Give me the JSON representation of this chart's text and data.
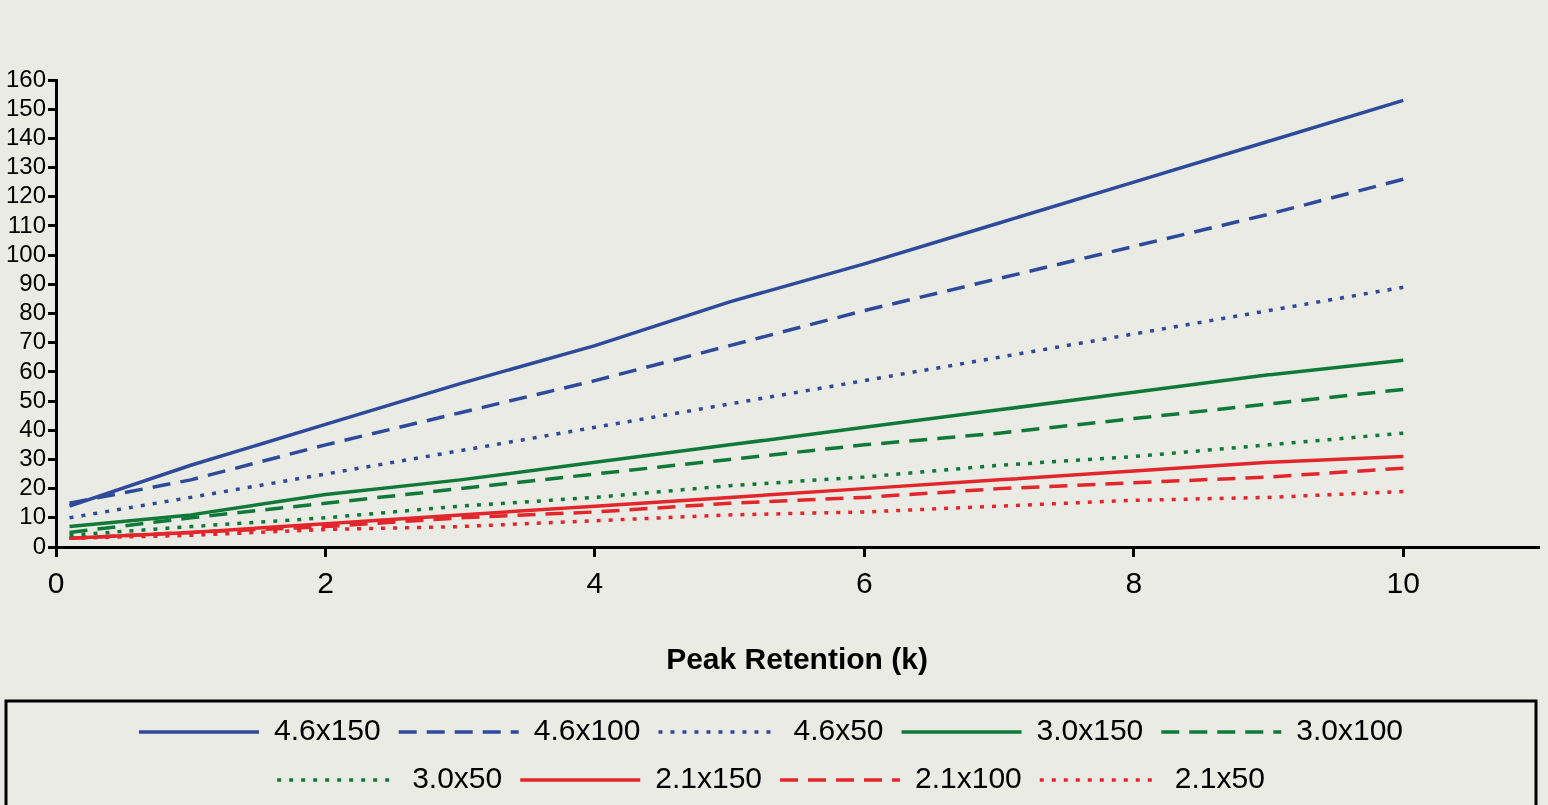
{
  "chart_data": {
    "type": "line",
    "xlabel": "Peak Retention (k)",
    "xlim": [
      0,
      11
    ],
    "xticks": [
      0,
      2,
      4,
      6,
      8,
      10
    ],
    "ylim": [
      0,
      160
    ],
    "yticks": [
      0,
      10,
      20,
      30,
      40,
      50,
      60,
      70,
      80,
      90,
      100,
      110,
      120,
      130,
      140,
      150,
      160
    ],
    "grid": false,
    "legend": "bottom",
    "marker": "none",
    "x": [
      0.1,
      1,
      2,
      3,
      4,
      5,
      6,
      7,
      8,
      9,
      10
    ],
    "series": [
      {
        "name": "4.6x150",
        "color": "#2e4a9a",
        "line_style": "solid",
        "values": [
          14,
          28,
          42,
          56,
          69,
          84,
          97,
          111,
          125,
          139,
          153
        ]
      },
      {
        "name": "4.6x100",
        "color": "#2e4a9a",
        "line_style": "dashed",
        "values": [
          15,
          23,
          35,
          46,
          57,
          69,
          81,
          92,
          103,
          114,
          126
        ]
      },
      {
        "name": "4.6x50",
        "color": "#2e4a9a",
        "line_style": "dotted",
        "values": [
          10,
          17,
          25,
          33,
          41,
          49,
          57,
          65,
          73,
          81,
          89
        ]
      },
      {
        "name": "3.0x150",
        "color": "#0f7a38",
        "line_style": "solid",
        "values": [
          7,
          11,
          18,
          23,
          29,
          35,
          41,
          47,
          53,
          59,
          64
        ]
      },
      {
        "name": "3.0x100",
        "color": "#0f7a38",
        "line_style": "dashed",
        "values": [
          5,
          10,
          15,
          20,
          25,
          30,
          35,
          39,
          44,
          49,
          54
        ]
      },
      {
        "name": "3.0x50",
        "color": "#0f7a38",
        "line_style": "dotted",
        "values": [
          4,
          7,
          10,
          14,
          17,
          21,
          24,
          28,
          31,
          35,
          39
        ]
      },
      {
        "name": "2.1x150",
        "color": "#e3262b",
        "line_style": "solid",
        "values": [
          3,
          5,
          8,
          11,
          14,
          17,
          20,
          23,
          26,
          29,
          31
        ]
      },
      {
        "name": "2.1x100",
        "color": "#e3262b",
        "line_style": "dashed",
        "values": [
          3,
          5,
          7,
          10,
          12,
          15,
          17,
          20,
          22,
          24,
          27
        ]
      },
      {
        "name": "2.1x50",
        "color": "#e3262b",
        "line_style": "dotted",
        "values": [
          3,
          4,
          6,
          7,
          9,
          11,
          12,
          14,
          16,
          17,
          19
        ]
      }
    ]
  }
}
